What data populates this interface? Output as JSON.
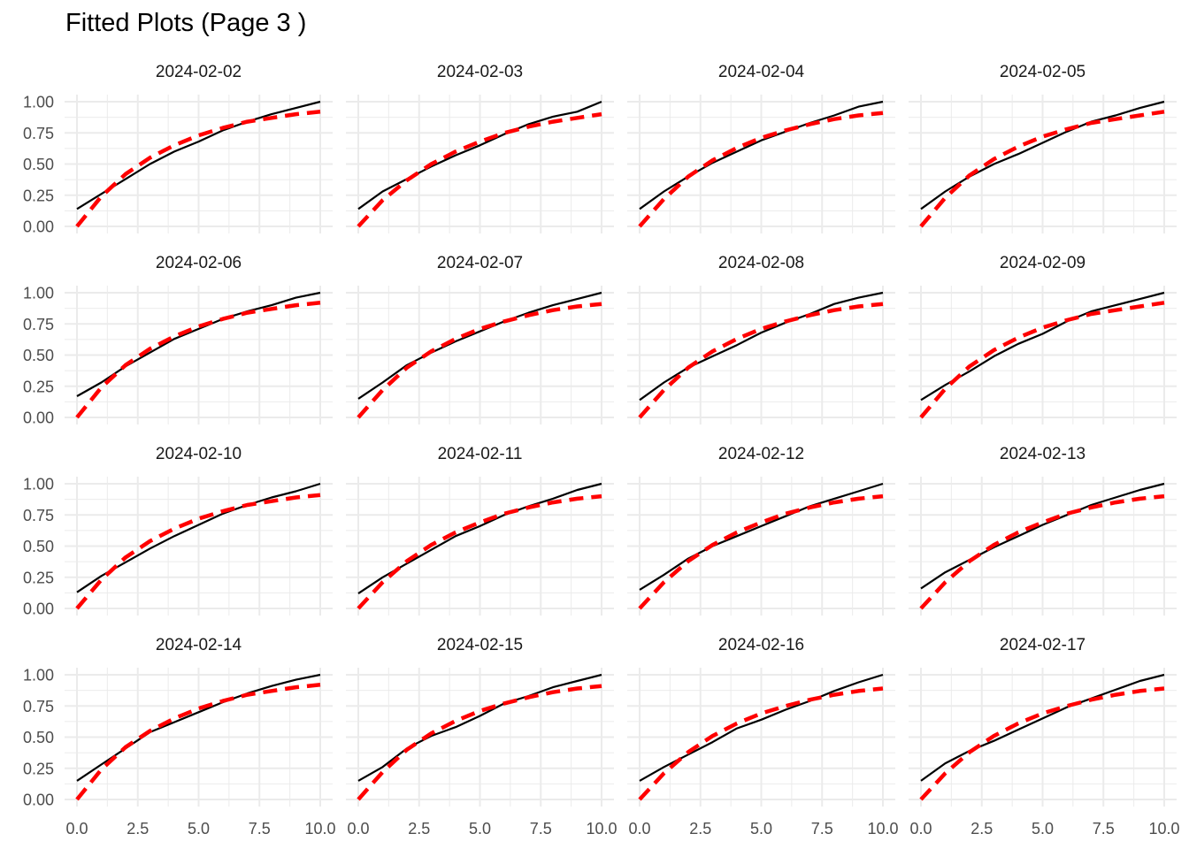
{
  "title": "Fitted Plots (Page 3 )",
  "colors": {
    "observed": "#000000",
    "fitted": "#ff0000",
    "grid": "#ebebeb",
    "background": "#ffffff"
  },
  "chart_data": {
    "type": "line",
    "layout": "facet-grid 4x4",
    "title": "Fitted Plots (Page 3 )",
    "xlabel": "",
    "ylabel": "",
    "xlim": [
      0,
      10
    ],
    "ylim": [
      0,
      1
    ],
    "x_ticks": [
      "0.0",
      "2.5",
      "5.0",
      "7.5",
      "10.0"
    ],
    "y_ticks": [
      "0.00",
      "0.25",
      "0.50",
      "0.75",
      "1.00"
    ],
    "grid": true,
    "legend": "none",
    "line_styles": {
      "observed": "solid black",
      "fitted": "dashed red"
    },
    "x": [
      0,
      1,
      2,
      3,
      4,
      5,
      6,
      7,
      8,
      9,
      10
    ],
    "panels": [
      {
        "label": "2024-02-02",
        "observed": [
          0.14,
          0.26,
          0.38,
          0.5,
          0.6,
          0.68,
          0.77,
          0.84,
          0.9,
          0.95,
          1.0
        ],
        "fitted": [
          0.0,
          0.24,
          0.42,
          0.55,
          0.65,
          0.73,
          0.79,
          0.84,
          0.87,
          0.9,
          0.92
        ]
      },
      {
        "label": "2024-02-03",
        "observed": [
          0.14,
          0.28,
          0.38,
          0.48,
          0.57,
          0.65,
          0.74,
          0.82,
          0.88,
          0.92,
          1.0
        ],
        "fitted": [
          0.0,
          0.21,
          0.37,
          0.5,
          0.6,
          0.68,
          0.75,
          0.8,
          0.84,
          0.87,
          0.9
        ]
      },
      {
        "label": "2024-02-04",
        "observed": [
          0.14,
          0.28,
          0.4,
          0.51,
          0.6,
          0.69,
          0.76,
          0.83,
          0.89,
          0.96,
          1.0
        ],
        "fitted": [
          0.0,
          0.22,
          0.4,
          0.53,
          0.63,
          0.71,
          0.77,
          0.82,
          0.86,
          0.89,
          0.91
        ]
      },
      {
        "label": "2024-02-05",
        "observed": [
          0.14,
          0.28,
          0.4,
          0.5,
          0.58,
          0.67,
          0.76,
          0.84,
          0.89,
          0.95,
          1.0
        ],
        "fitted": [
          0.0,
          0.23,
          0.41,
          0.54,
          0.64,
          0.72,
          0.78,
          0.83,
          0.86,
          0.89,
          0.92
        ]
      },
      {
        "label": "2024-02-06",
        "observed": [
          0.17,
          0.28,
          0.41,
          0.52,
          0.63,
          0.71,
          0.79,
          0.85,
          0.9,
          0.96,
          1.0
        ],
        "fitted": [
          0.0,
          0.24,
          0.42,
          0.55,
          0.65,
          0.73,
          0.79,
          0.84,
          0.87,
          0.9,
          0.92
        ]
      },
      {
        "label": "2024-02-07",
        "observed": [
          0.15,
          0.28,
          0.42,
          0.52,
          0.61,
          0.69,
          0.77,
          0.84,
          0.9,
          0.95,
          1.0
        ],
        "fitted": [
          0.0,
          0.22,
          0.4,
          0.53,
          0.63,
          0.71,
          0.77,
          0.82,
          0.86,
          0.89,
          0.91
        ]
      },
      {
        "label": "2024-02-08",
        "observed": [
          0.14,
          0.28,
          0.4,
          0.49,
          0.58,
          0.68,
          0.76,
          0.83,
          0.91,
          0.96,
          1.0
        ],
        "fitted": [
          0.0,
          0.22,
          0.4,
          0.53,
          0.63,
          0.71,
          0.77,
          0.82,
          0.86,
          0.89,
          0.91
        ]
      },
      {
        "label": "2024-02-09",
        "observed": [
          0.14,
          0.26,
          0.37,
          0.49,
          0.59,
          0.67,
          0.77,
          0.85,
          0.9,
          0.95,
          1.0
        ],
        "fitted": [
          0.0,
          0.23,
          0.41,
          0.54,
          0.64,
          0.72,
          0.78,
          0.83,
          0.86,
          0.89,
          0.92
        ]
      },
      {
        "label": "2024-02-10",
        "observed": [
          0.13,
          0.26,
          0.37,
          0.48,
          0.58,
          0.67,
          0.76,
          0.83,
          0.89,
          0.94,
          1.0
        ],
        "fitted": [
          0.0,
          0.23,
          0.41,
          0.54,
          0.64,
          0.72,
          0.78,
          0.83,
          0.86,
          0.89,
          0.91
        ]
      },
      {
        "label": "2024-02-11",
        "observed": [
          0.12,
          0.25,
          0.36,
          0.47,
          0.58,
          0.66,
          0.75,
          0.82,
          0.88,
          0.95,
          1.0
        ],
        "fitted": [
          0.0,
          0.21,
          0.38,
          0.51,
          0.61,
          0.69,
          0.76,
          0.81,
          0.85,
          0.88,
          0.9
        ]
      },
      {
        "label": "2024-02-12",
        "observed": [
          0.15,
          0.27,
          0.4,
          0.5,
          0.58,
          0.66,
          0.74,
          0.82,
          0.88,
          0.94,
          1.0
        ],
        "fitted": [
          0.0,
          0.21,
          0.38,
          0.51,
          0.61,
          0.69,
          0.76,
          0.81,
          0.85,
          0.88,
          0.9
        ]
      },
      {
        "label": "2024-02-13",
        "observed": [
          0.16,
          0.29,
          0.39,
          0.49,
          0.58,
          0.67,
          0.75,
          0.83,
          0.89,
          0.95,
          1.0
        ],
        "fitted": [
          0.0,
          0.21,
          0.38,
          0.51,
          0.61,
          0.69,
          0.76,
          0.81,
          0.85,
          0.88,
          0.9
        ]
      },
      {
        "label": "2024-02-14",
        "observed": [
          0.15,
          0.28,
          0.41,
          0.54,
          0.62,
          0.7,
          0.78,
          0.85,
          0.91,
          0.96,
          1.0
        ],
        "fitted": [
          0.0,
          0.24,
          0.42,
          0.55,
          0.65,
          0.73,
          0.79,
          0.84,
          0.87,
          0.9,
          0.92
        ]
      },
      {
        "label": "2024-02-15",
        "observed": [
          0.15,
          0.26,
          0.41,
          0.51,
          0.58,
          0.67,
          0.77,
          0.83,
          0.9,
          0.95,
          1.0
        ],
        "fitted": [
          0.0,
          0.22,
          0.4,
          0.53,
          0.63,
          0.71,
          0.77,
          0.82,
          0.86,
          0.89,
          0.91
        ]
      },
      {
        "label": "2024-02-16",
        "observed": [
          0.15,
          0.26,
          0.36,
          0.46,
          0.57,
          0.64,
          0.72,
          0.79,
          0.87,
          0.94,
          1.0
        ],
        "fitted": [
          0.0,
          0.21,
          0.38,
          0.51,
          0.61,
          0.69,
          0.75,
          0.8,
          0.84,
          0.87,
          0.89
        ]
      },
      {
        "label": "2024-02-17",
        "observed": [
          0.15,
          0.29,
          0.39,
          0.47,
          0.56,
          0.65,
          0.74,
          0.81,
          0.88,
          0.95,
          1.0
        ],
        "fitted": [
          0.0,
          0.21,
          0.38,
          0.51,
          0.61,
          0.69,
          0.75,
          0.8,
          0.84,
          0.87,
          0.89
        ]
      }
    ]
  }
}
